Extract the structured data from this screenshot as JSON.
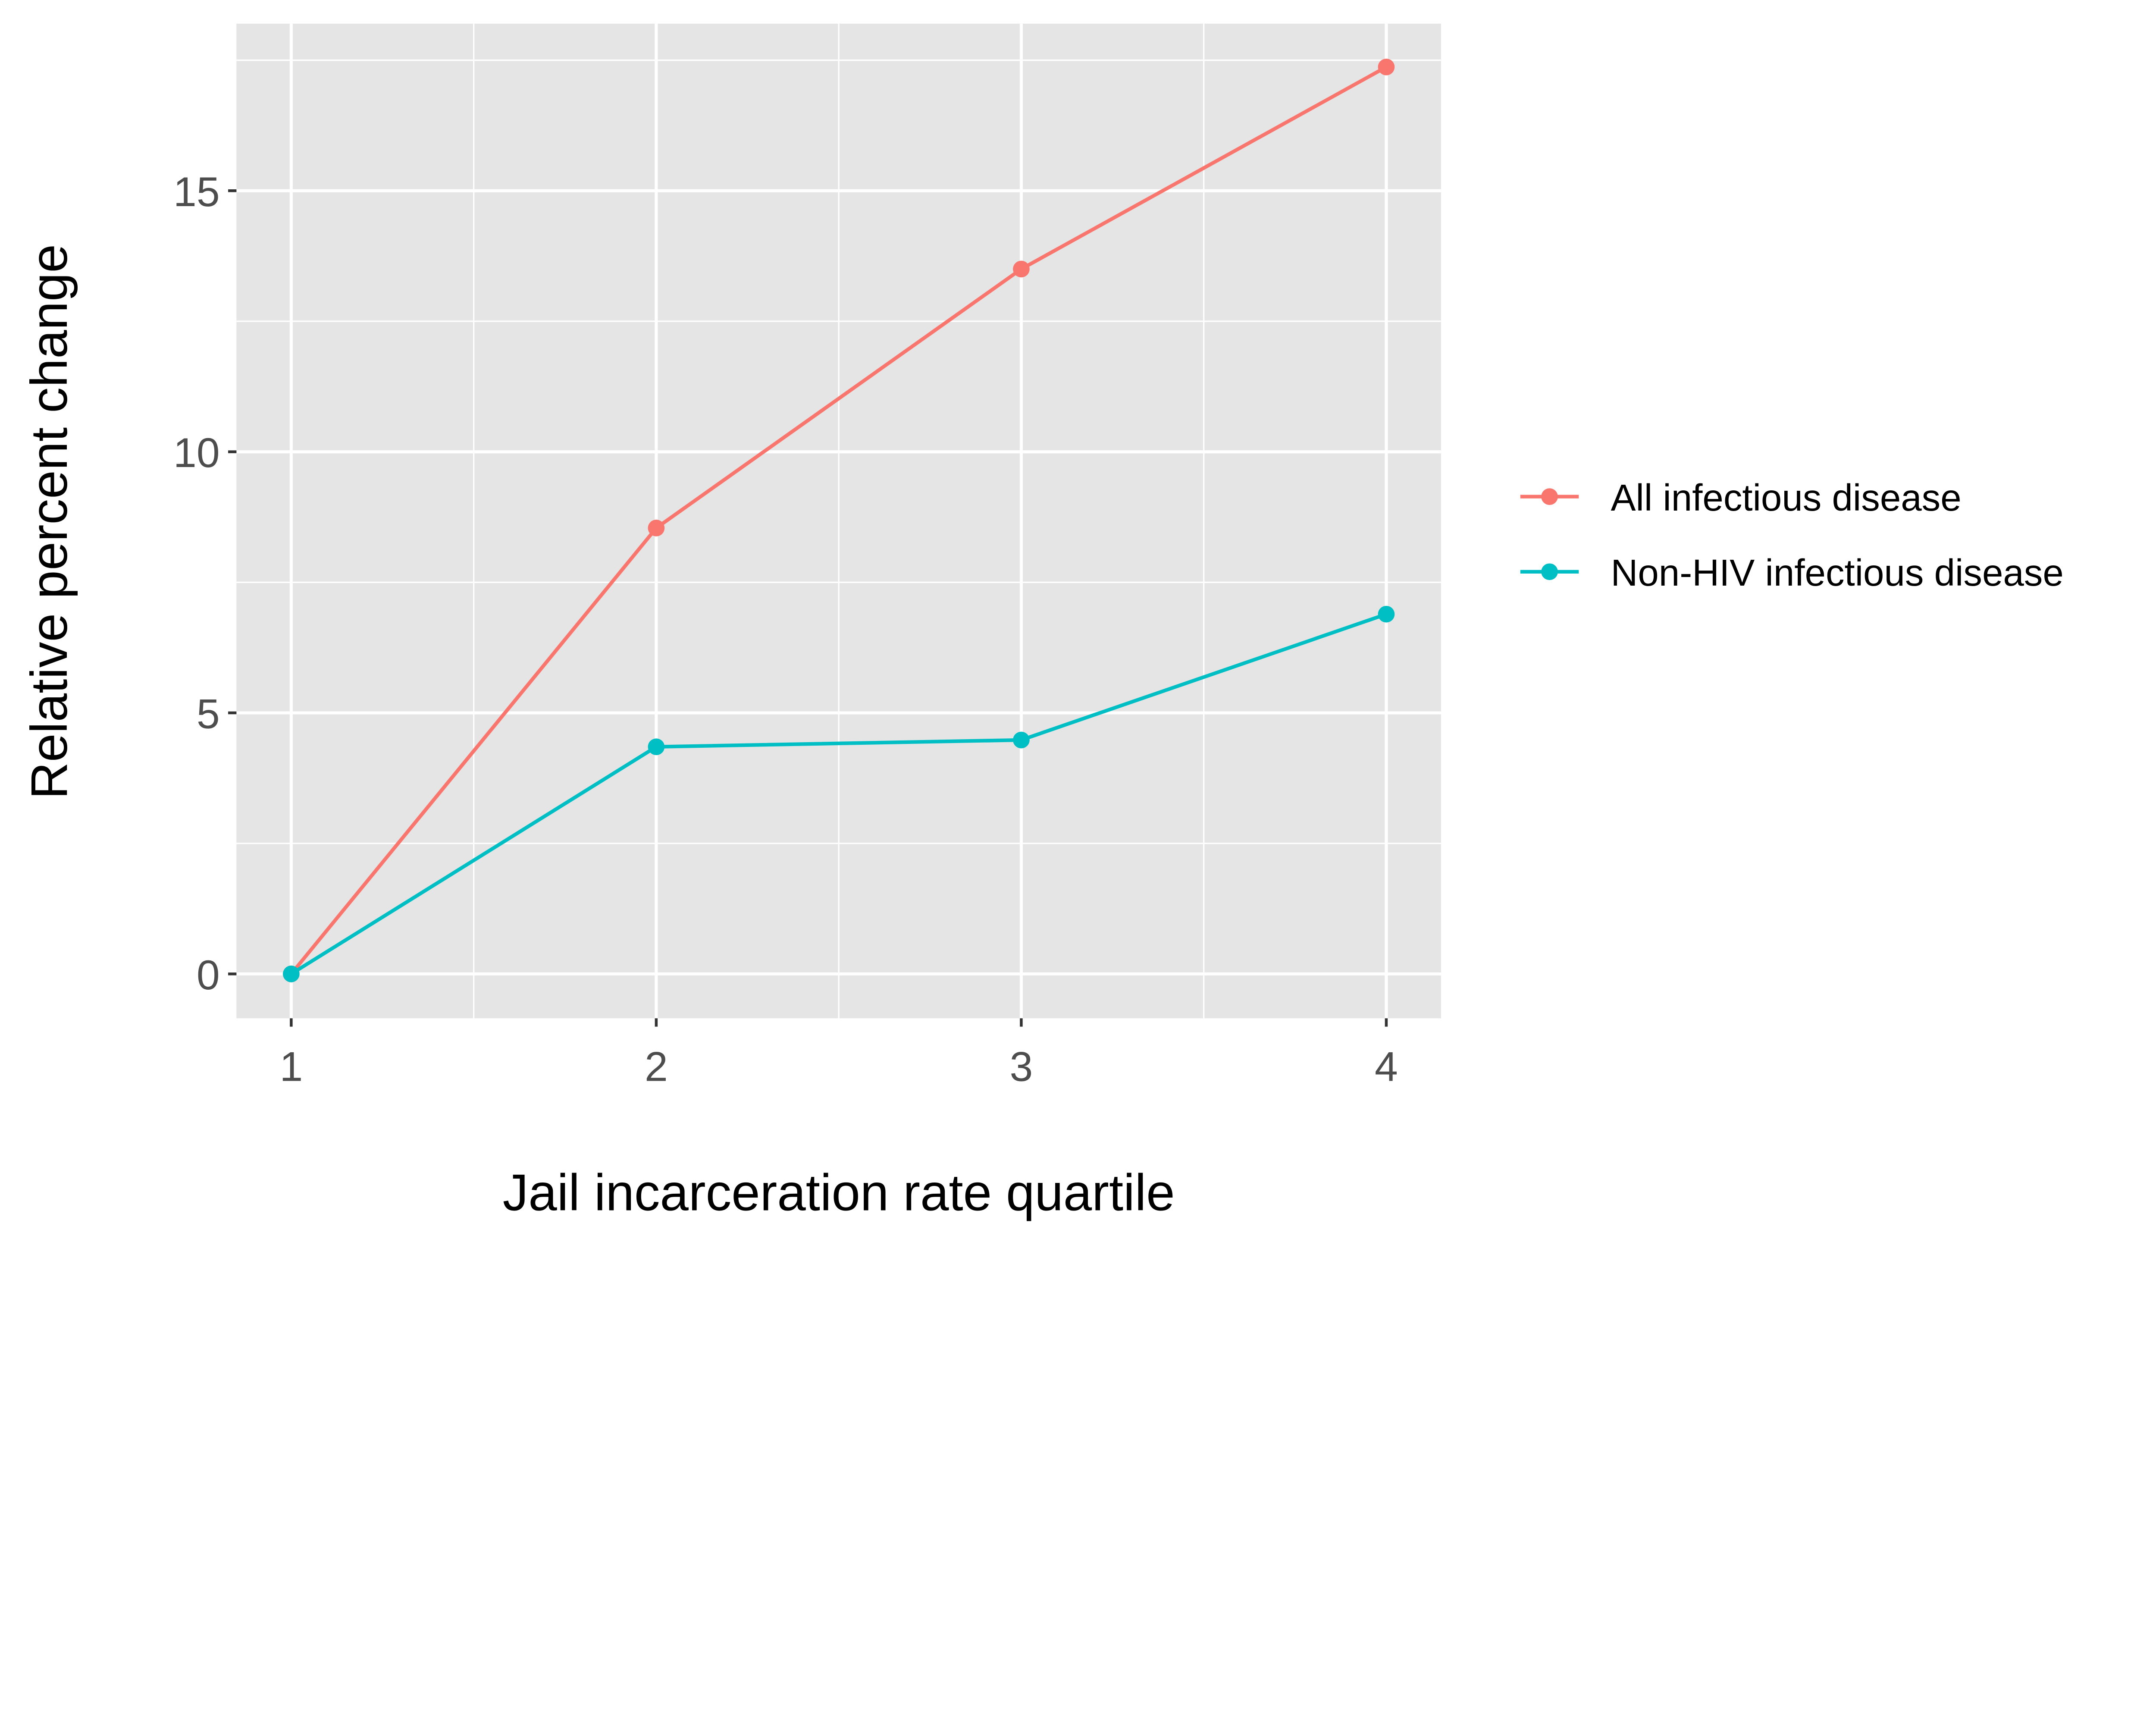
{
  "chart_data": {
    "type": "line",
    "title": "",
    "xlabel": "Jail incarceration rate quartile",
    "ylabel": "Relative percent change",
    "x": [
      1,
      2,
      3,
      4
    ],
    "x_ticks": [
      "1",
      "2",
      "3",
      "4"
    ],
    "y_ticks": [
      "0",
      "5",
      "10",
      "15"
    ],
    "xlim": [
      0.85,
      4.15
    ],
    "ylim": [
      -0.85,
      18.2
    ],
    "grid": true,
    "legend_position": "right",
    "series": [
      {
        "name": "All infectious disease",
        "color": "#F8766D",
        "values": [
          0,
          8.54,
          13.5,
          17.37
        ]
      },
      {
        "name": "Non-HIV infectious disease",
        "color": "#00BFC4",
        "values": [
          0,
          4.35,
          4.48,
          6.89
        ]
      }
    ],
    "colors": {
      "panel": "#E5E5E5",
      "grid": "#FFFFFF",
      "text": "#4D4D4D"
    }
  }
}
